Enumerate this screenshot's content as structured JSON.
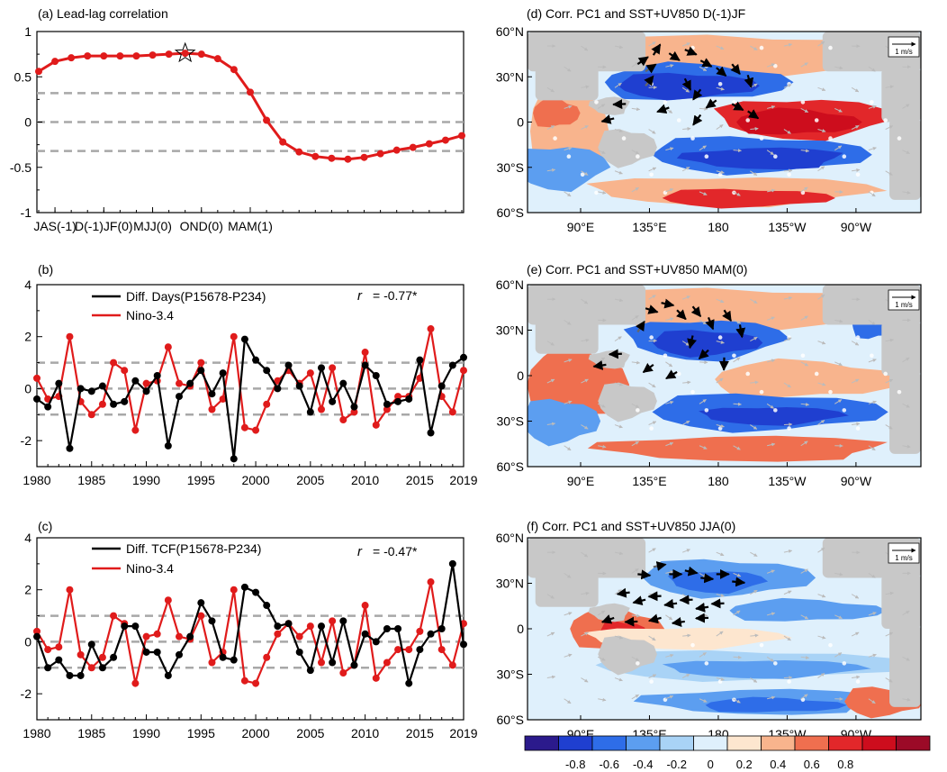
{
  "figure": {
    "panel_a": {
      "title": "(a) Lead-lag correlation"
    },
    "panel_b": {
      "title": "(b)",
      "legend": [
        "Diff. Days(P15678-P234)",
        "Nino-3.4"
      ],
      "r_label": "r",
      "r_value": "= -0.77*"
    },
    "panel_c": {
      "title": "(c)",
      "legend": [
        "Diff. TCF(P15678-P234)",
        "Nino-3.4"
      ],
      "r_label": "r",
      "r_value": "= -0.47*"
    },
    "panel_d": {
      "title": "(d) Corr. PC1 and SST+UV850 D(-1)JF"
    },
    "panel_e": {
      "title": "(e) Corr. PC1 and SST+UV850 MAM(0)"
    },
    "panel_f": {
      "title": "(f) Corr. PC1 and SST+UV850 JJA(0)"
    },
    "map_lat_labels": [
      "60°N",
      "30°N",
      "0",
      "30°S",
      "60°S"
    ],
    "map_lon_labels": [
      "90°E",
      "135°E",
      "180",
      "135°W",
      "90°W"
    ],
    "ref_vector_label": "1 m/s",
    "colorbar": {
      "labels": [
        "-0.8",
        "-0.6",
        "-0.4",
        "-0.2",
        "0",
        "0.2",
        "0.4",
        "0.6",
        "0.8"
      ],
      "colors": [
        "#2b1a8c",
        "#1f3fd0",
        "#2e6de8",
        "#5c9ef0",
        "#a9d3f6",
        "#dff0fc",
        "#fde6cf",
        "#f8b48d",
        "#ef6f4f",
        "#e2272a",
        "#cd0d1d",
        "#9b0a27"
      ]
    },
    "colors": {
      "diff_line": "#000000",
      "nino_line": "#e01b1b",
      "dash": "#a8a8a8",
      "land": "#c8c8c8"
    }
  },
  "chart_data": [
    {
      "type": "line",
      "id": "a",
      "title": "(a) Lead-lag correlation",
      "x_tick_labels": [
        "JAS(-1)",
        "D(-1)JF(0)",
        "MJJ(0)",
        "OND(0)",
        "MAM(1)"
      ],
      "x_tick_index": [
        1,
        4,
        7,
        10,
        13
      ],
      "ylim": [
        -1,
        1
      ],
      "y_ticks": [
        -1,
        -0.5,
        0,
        0.5,
        1
      ],
      "ref_lines": [
        0.32,
        0,
        -0.32
      ],
      "series": [
        {
          "values": [
            0.56,
            0.67,
            0.71,
            0.73,
            0.73,
            0.73,
            0.73,
            0.74,
            0.75,
            0.76,
            0.75,
            0.7,
            0.58,
            0.33,
            0.02,
            -0.22,
            -0.33,
            -0.38,
            -0.4,
            -0.41,
            -0.39,
            -0.35,
            -0.31,
            -0.28,
            -0.24,
            -0.2,
            -0.15
          ]
        }
      ],
      "star_index": 9
    },
    {
      "type": "line",
      "id": "b",
      "x": [
        1980,
        1981,
        1982,
        1983,
        1984,
        1985,
        1986,
        1987,
        1988,
        1989,
        1990,
        1991,
        1992,
        1993,
        1994,
        1995,
        1996,
        1997,
        1998,
        1999,
        2000,
        2001,
        2002,
        2003,
        2004,
        2005,
        2006,
        2007,
        2008,
        2009,
        2010,
        2011,
        2012,
        2013,
        2014,
        2015,
        2016,
        2017,
        2018,
        2019
      ],
      "x_ticks": [
        1980,
        1985,
        1990,
        1995,
        2000,
        2005,
        2010,
        2015,
        2019
      ],
      "ylim": [
        -3,
        4
      ],
      "y_ticks": [
        -2,
        0,
        2,
        4
      ],
      "ref_lines": [
        1,
        0,
        -1
      ],
      "series": [
        {
          "name": "Diff. Days(P15678-P234)",
          "values": [
            -0.4,
            -0.7,
            0.2,
            -2.3,
            0.0,
            -0.1,
            0.1,
            -0.6,
            -0.5,
            0.3,
            -0.1,
            0.5,
            -2.2,
            -0.3,
            0.2,
            0.7,
            -0.2,
            0.6,
            -2.7,
            1.9,
            1.1,
            0.7,
            0.0,
            0.9,
            0.1,
            -0.9,
            0.8,
            -0.5,
            0.2,
            -0.7,
            0.9,
            0.5,
            -0.6,
            -0.5,
            -0.4,
            1.1,
            -1.7,
            0.1,
            0.9,
            1.2
          ]
        },
        {
          "name": "Nino-3.4",
          "values": [
            0.4,
            -0.4,
            -0.3,
            2.0,
            -0.5,
            -1.0,
            -0.6,
            1.0,
            0.7,
            -1.6,
            0.2,
            0.3,
            1.6,
            0.2,
            0.1,
            1.0,
            -0.8,
            -0.4,
            2.0,
            -1.5,
            -1.6,
            -0.6,
            0.3,
            0.7,
            0.2,
            0.6,
            -0.8,
            0.8,
            -1.2,
            -0.9,
            1.4,
            -1.4,
            -0.8,
            -0.3,
            -0.3,
            0.4,
            2.3,
            -0.3,
            -0.9,
            0.7
          ]
        }
      ]
    },
    {
      "type": "line",
      "id": "c",
      "x": [
        1980,
        1981,
        1982,
        1983,
        1984,
        1985,
        1986,
        1987,
        1988,
        1989,
        1990,
        1991,
        1992,
        1993,
        1994,
        1995,
        1996,
        1997,
        1998,
        1999,
        2000,
        2001,
        2002,
        2003,
        2004,
        2005,
        2006,
        2007,
        2008,
        2009,
        2010,
        2011,
        2012,
        2013,
        2014,
        2015,
        2016,
        2017,
        2018,
        2019
      ],
      "x_ticks": [
        1980,
        1985,
        1990,
        1995,
        2000,
        2005,
        2010,
        2015,
        2019
      ],
      "ylim": [
        -3,
        4
      ],
      "y_ticks": [
        -2,
        0,
        2,
        4
      ],
      "ref_lines": [
        1,
        0,
        -1
      ],
      "series": [
        {
          "name": "Diff. TCF(P15678-P234)",
          "values": [
            0.2,
            -1.0,
            -0.7,
            -1.3,
            -1.3,
            -0.1,
            -1.0,
            -0.6,
            0.6,
            0.6,
            -0.4,
            -0.4,
            -1.3,
            -0.5,
            0.2,
            1.5,
            0.8,
            -0.6,
            -0.7,
            2.1,
            1.9,
            1.4,
            0.6,
            0.7,
            -0.4,
            -1.1,
            0.6,
            -0.8,
            0.8,
            -0.9,
            0.3,
            0.0,
            0.5,
            0.5,
            -1.6,
            -0.3,
            0.3,
            0.5,
            3.0,
            -0.1
          ]
        },
        {
          "name": "Nino-3.4",
          "values": [
            0.4,
            -0.3,
            -0.2,
            2.0,
            -0.5,
            -1.0,
            -0.6,
            1.0,
            0.7,
            -1.6,
            0.2,
            0.3,
            1.6,
            0.2,
            0.1,
            1.0,
            -0.8,
            -0.4,
            2.0,
            -1.5,
            -1.6,
            -0.6,
            0.3,
            0.7,
            0.2,
            0.6,
            -0.8,
            0.8,
            -1.2,
            -0.9,
            1.4,
            -1.4,
            -0.8,
            -0.3,
            -0.3,
            0.4,
            2.3,
            -0.3,
            -0.9,
            0.7
          ]
        }
      ]
    },
    {
      "type": "heatmap",
      "id": "maps",
      "note_lat_range": [
        -60,
        60
      ],
      "lon_ticks": [
        "90°E",
        "135°E",
        "180",
        "135°W",
        "90°W"
      ],
      "lat_ticks": [
        "60°N",
        "30°N",
        "0",
        "30°S",
        "60°S"
      ],
      "levels": [
        -0.8,
        -0.6,
        -0.4,
        -0.2,
        0,
        0.2,
        0.4,
        0.6,
        0.8
      ]
    }
  ]
}
